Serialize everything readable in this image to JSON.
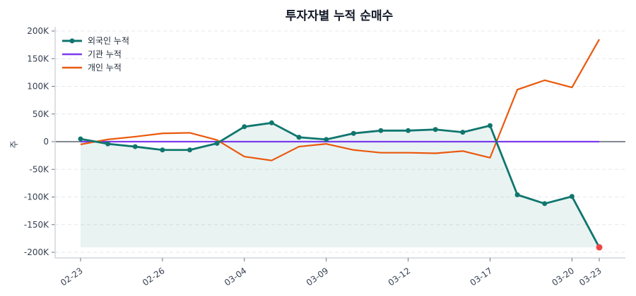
{
  "chart_data": {
    "type": "line",
    "title": "투자자별 누적 순매수",
    "xlabel": "",
    "ylabel": "주",
    "ylim": [
      -200000,
      200000
    ],
    "y_ticks": [
      200000,
      150000,
      100000,
      50000,
      0,
      -50000,
      -100000,
      -150000,
      -200000
    ],
    "y_tick_labels": [
      "200K",
      "150K",
      "100K",
      "50K",
      "0",
      "-50K",
      "-100K",
      "-150K",
      "-200K"
    ],
    "x_ticks": [
      {
        "index": 0,
        "label": "02-23"
      },
      {
        "index": 3,
        "label": "02-26"
      },
      {
        "index": 6,
        "label": "03-04"
      },
      {
        "index": 9,
        "label": "03-09"
      },
      {
        "index": 12,
        "label": "03-12"
      },
      {
        "index": 15,
        "label": "03-17"
      },
      {
        "index": 18,
        "label": "03-20"
      },
      {
        "index": 19,
        "label": "03-23"
      }
    ],
    "grid": true,
    "legend_position": "top-left",
    "series": [
      {
        "name": "외국인 누적",
        "color": "#0f766e",
        "markers": true,
        "fill": true,
        "values": [
          5000,
          -4000,
          -9000,
          -15000,
          -15000,
          -3000,
          27000,
          34000,
          8000,
          4000,
          15000,
          20000,
          20000,
          22000,
          17000,
          29000,
          -96000,
          -112000,
          -99000,
          -191000
        ],
        "last_point_color": "#ef4444"
      },
      {
        "name": "기관 누적",
        "color": "#7c3aed",
        "markers": false,
        "fill": false,
        "values": [
          0,
          0,
          0,
          0,
          0,
          0,
          0,
          0,
          0,
          0,
          0,
          0,
          0,
          0,
          0,
          0,
          0,
          0,
          0,
          0
        ]
      },
      {
        "name": "개인 누적",
        "color": "#ea580c",
        "markers": false,
        "fill": false,
        "values": [
          -5000,
          4000,
          9000,
          15000,
          16000,
          3000,
          -27000,
          -34000,
          -9000,
          -4000,
          -15000,
          -20000,
          -20000,
          -21000,
          -17000,
          -29000,
          94000,
          111000,
          98000,
          185000
        ]
      }
    ]
  }
}
